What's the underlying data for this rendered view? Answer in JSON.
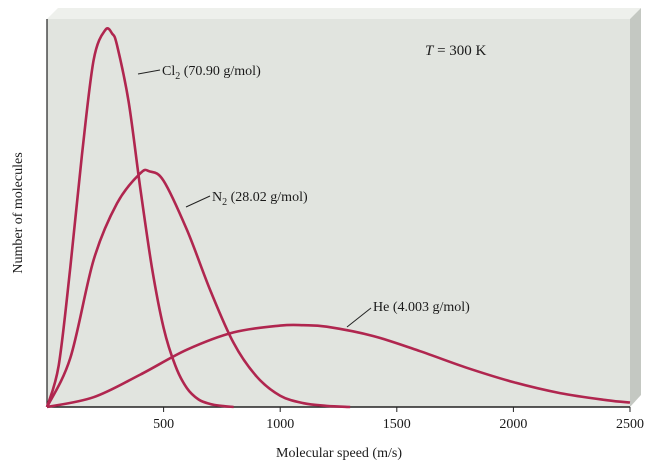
{
  "colors": {
    "curve": "#b0264f",
    "panel_face": "#e1e4df",
    "panel_top": "#eef0ec",
    "panel_side": "#c4c8c2",
    "axis": "#222222"
  },
  "chart_data": {
    "type": "line",
    "title": "",
    "xlabel": "Molecular speed (m/s)",
    "ylabel": "Number of molecules",
    "xlim": [
      0,
      2500
    ],
    "xticks": [
      500,
      1000,
      1500,
      2000,
      2500
    ],
    "y_ticks_shown": false,
    "grid": false,
    "annotation": {
      "text": "T = 300 K",
      "symbol": "T",
      "rest": " = 300 K"
    },
    "series": [
      {
        "name": "Cl2 (70.90 g/mol)",
        "label_main": "Cl",
        "label_sub": "2",
        "label_rest": " (70.90 g/mol)",
        "x": [
          0,
          50,
          100,
          150,
          200,
          250,
          280,
          300,
          350,
          400,
          450,
          500,
          550,
          600,
          650,
          700,
          750,
          800
        ],
        "y": [
          0,
          0.11,
          0.37,
          0.67,
          0.92,
          1.0,
          0.99,
          0.96,
          0.81,
          0.58,
          0.37,
          0.21,
          0.11,
          0.05,
          0.02,
          0.008,
          0.003,
          0
        ]
      },
      {
        "name": "N2 (28.02 g/mol)",
        "label_main": "N",
        "label_sub": "2",
        "label_rest": " (28.02 g/mol)",
        "x": [
          0,
          100,
          200,
          300,
          400,
          440,
          500,
          600,
          700,
          800,
          900,
          1000,
          1100,
          1200,
          1300
        ],
        "y": [
          0,
          0.13,
          0.39,
          0.54,
          0.62,
          0.625,
          0.6,
          0.47,
          0.31,
          0.17,
          0.08,
          0.03,
          0.01,
          0.003,
          0
        ]
      },
      {
        "name": "He (4.003 g/mol)",
        "label_main": "He",
        "label_sub": "",
        "label_rest": " (4.003 g/mol)",
        "x": [
          0,
          200,
          400,
          600,
          800,
          1000,
          1100,
          1200,
          1400,
          1600,
          1800,
          2000,
          2200,
          2400,
          2500
        ],
        "y": [
          0,
          0.026,
          0.086,
          0.152,
          0.198,
          0.216,
          0.217,
          0.213,
          0.188,
          0.148,
          0.104,
          0.066,
          0.037,
          0.018,
          0.012
        ]
      }
    ]
  }
}
